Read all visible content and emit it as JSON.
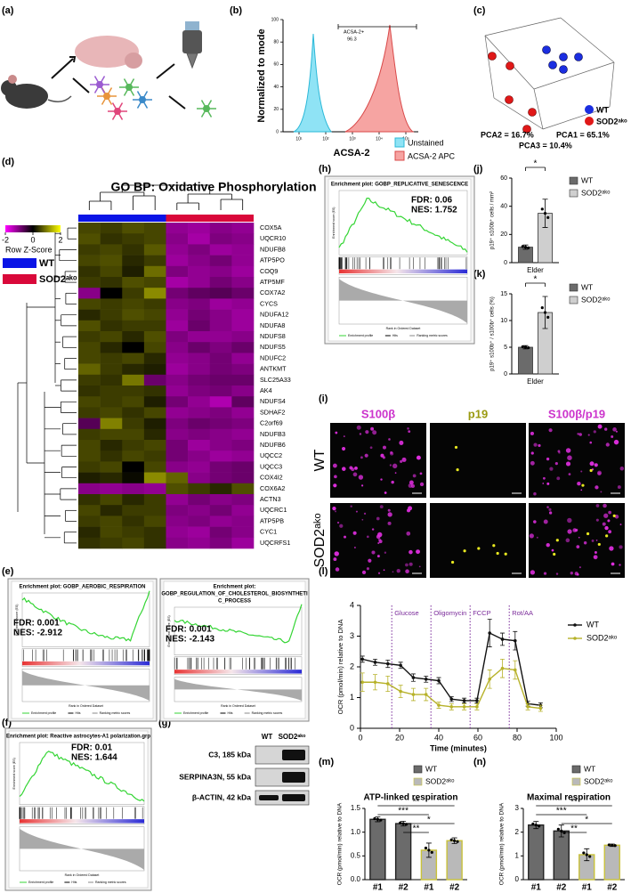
{
  "figure": {
    "panel_labels": [
      "(a)",
      "(b)",
      "(c)",
      "(d)",
      "(e)",
      "(f)",
      "(g)",
      "(h)",
      "(i)",
      "(j)",
      "(k)",
      "(l)",
      "(m)",
      "(n)"
    ],
    "b": {
      "y_label": "Normalized to mode",
      "x_label": "ACSA-2",
      "gate": "ACSA-2+",
      "gate_value": "96.3",
      "legend": [
        "Unstained",
        "ACSA-2 APC"
      ],
      "xticks": [
        "10¹",
        "10²",
        "10³",
        "10⁴",
        "10⁵"
      ],
      "yticks": [
        "0",
        "20",
        "40",
        "60",
        "80",
        "100"
      ]
    },
    "c": {
      "axes": [
        "PCA2 = 16.7%",
        "PCA1 = 65.1%",
        "PCA3 = 10.4%"
      ],
      "legend": [
        "WT",
        "SOD2ᵃᵏᵒ"
      ]
    },
    "gsea_common": {
      "es_label": "Enrichment score (ES)",
      "rank_label": "Rank in Ordered Dataset",
      "legend": [
        "Enrichment profile",
        "Hits",
        "Ranking metric scores"
      ]
    },
    "e": [
      {
        "title": [
          "Enrichment plot: GOBP_AEROBIC_RESPIRATION"
        ],
        "fdr": "FDR: 0.001",
        "nes": "NES: -2.912"
      },
      {
        "title": [
          "Enrichment plot:",
          "GOBP_REGULATION_OF_CHOLESTEROL_BIOSYNTHETI",
          "C_PROCESS"
        ],
        "fdr": "FDR: 0.001",
        "nes": "NES: -2.143"
      }
    ],
    "f": {
      "title": [
        "Enrichment plot: Reactive astrocytes-A1 polarization.grp"
      ],
      "fdr": "FDR: 0.01",
      "nes": "NES: 1.644"
    },
    "h": {
      "title": [
        "Enrichment plot: GOBP_REPLICATIVE_SENESCENCE"
      ],
      "fdr": "FDR: 0.06",
      "nes": "NES: 1.752"
    },
    "g": {
      "lanes": [
        "WT",
        "SOD2ᵃᵏᵒ"
      ],
      "bands": [
        "C3, 185 kDa",
        "SERPINA3N, 55 kDa",
        "β-ACTIN, 42 kDa"
      ]
    },
    "i": {
      "columns": [
        "S100β",
        "p19",
        "S100β/p19"
      ],
      "rows": [
        "WT",
        "SOD2ᵃᵏᵒ"
      ]
    }
  },
  "chart_data": [
    {
      "type": "heatmap",
      "title": "GO BP: Oxidative Phosphorylation",
      "colorbar": {
        "label": "Row Z-Score",
        "ticks": [
          -2,
          0,
          2
        ],
        "colors": [
          "#ff00ff",
          "#000000",
          "#ffff00"
        ]
      },
      "zlim": [
        -2,
        2
      ],
      "groups": [
        {
          "name": "WT",
          "color": "#0a14e6",
          "count": 4
        },
        {
          "name": "SOD2ᵃᵏᵒ",
          "color": "#d9083a",
          "count": 4
        }
      ],
      "rows": [
        "COX5A",
        "UQCR10",
        "NDUFB8",
        "ATP5PO",
        "COQ9",
        "ATP5MF",
        "COX7A2",
        "CYCS",
        "NDUFA12",
        "NDUFA8",
        "NDUFS8",
        "NDUFS5",
        "NDUFC2",
        "ANTKMT",
        "SLC25A33",
        "AK4",
        "NDUFS4",
        "SDHAF2",
        "C2orf69",
        "NDUFB3",
        "NDUFB6",
        "UQCC2",
        "UQCC3",
        "COX4I2",
        "COX6A2",
        "ACTN3",
        "UQCRC1",
        "ATP5PB",
        "CYC1",
        "UQCRFS1"
      ],
      "values": [
        [
          0.9,
          0.8,
          1.0,
          0.9,
          -0.9,
          -1.0,
          -0.8,
          -0.9
        ],
        [
          1.0,
          0.7,
          0.8,
          0.9,
          -0.8,
          -1.1,
          -0.7,
          -0.8
        ],
        [
          0.8,
          0.9,
          0.7,
          1.1,
          -0.9,
          -0.7,
          -1.0,
          -0.9
        ],
        [
          0.9,
          1.0,
          0.6,
          0.8,
          -1.0,
          -0.8,
          -0.6,
          -0.9
        ],
        [
          0.7,
          0.9,
          0.5,
          1.3,
          -0.7,
          -0.9,
          -0.8,
          -1.0
        ],
        [
          0.8,
          0.7,
          1.0,
          0.9,
          -1.1,
          -0.9,
          -0.6,
          -0.8
        ],
        [
          -0.8,
          0.2,
          0.8,
          1.6,
          -0.6,
          -0.4,
          -0.3,
          -0.5
        ],
        [
          0.9,
          0.8,
          0.9,
          0.8,
          -0.8,
          -0.7,
          -1.0,
          -0.9
        ],
        [
          0.6,
          0.8,
          1.0,
          0.9,
          -0.9,
          -0.6,
          -0.8,
          -1.0
        ],
        [
          1.0,
          0.7,
          0.8,
          0.8,
          -1.0,
          -0.5,
          -0.8,
          -1.0
        ],
        [
          0.8,
          0.9,
          0.6,
          1.0,
          -0.7,
          -0.9,
          -0.9,
          -0.8
        ],
        [
          0.9,
          0.6,
          0.1,
          0.9,
          -0.8,
          -0.5,
          -0.7,
          -0.5
        ],
        [
          0.9,
          0.8,
          0.9,
          0.6,
          -0.9,
          -0.8,
          -0.6,
          -0.9
        ],
        [
          1.2,
          0.8,
          0.6,
          0.5,
          -1.0,
          -0.8,
          -0.6,
          -0.7
        ],
        [
          0.8,
          0.7,
          1.4,
          -0.5,
          -0.8,
          -0.6,
          -0.5,
          -0.5
        ],
        [
          0.7,
          0.8,
          0.8,
          0.7,
          -0.9,
          -0.7,
          -0.6,
          -0.8
        ],
        [
          0.9,
          0.8,
          0.9,
          0.5,
          -0.6,
          -0.9,
          -1.2,
          -0.4
        ],
        [
          0.8,
          0.9,
          0.7,
          0.9,
          -0.9,
          -0.8,
          -0.7,
          -0.9
        ],
        [
          -0.3,
          1.5,
          0.8,
          0.5,
          -0.7,
          -0.5,
          -0.6,
          -0.7
        ],
        [
          0.8,
          0.9,
          0.9,
          0.6,
          -0.8,
          -0.7,
          -0.8,
          -0.9
        ],
        [
          0.9,
          0.6,
          0.8,
          0.9,
          -0.6,
          -1.0,
          -0.8,
          -0.7
        ],
        [
          0.9,
          0.7,
          0.9,
          0.8,
          -0.6,
          -0.8,
          -1.0,
          -0.9
        ],
        [
          0.8,
          0.9,
          0.2,
          0.9,
          -0.8,
          -0.9,
          -0.6,
          -0.5
        ],
        [
          0.5,
          0.6,
          0.3,
          1.6,
          1.2,
          -0.8,
          -0.6,
          -0.5
        ],
        [
          -0.8,
          -0.9,
          -0.8,
          -0.9,
          1.0,
          0.8,
          0.6,
          1.0
        ],
        [
          0.7,
          0.9,
          0.6,
          0.8,
          -0.9,
          -0.6,
          -0.8,
          -0.7
        ],
        [
          0.9,
          0.6,
          0.8,
          0.8,
          -0.7,
          -0.8,
          -0.6,
          -0.9
        ],
        [
          0.8,
          0.9,
          0.7,
          0.9,
          -0.8,
          -0.7,
          -0.9,
          -0.8
        ],
        [
          0.6,
          0.9,
          0.8,
          0.7,
          -0.9,
          -1.0,
          -0.6,
          -0.8
        ],
        [
          0.7,
          0.8,
          0.9,
          0.7,
          -0.8,
          -0.9,
          -0.7,
          -1.0
        ]
      ]
    },
    {
      "type": "bar",
      "y_label": "p19⁺ s100b⁺ cells / mm²",
      "categories": [
        "Elder"
      ],
      "series": [
        {
          "name": "WT",
          "color": "#6b6b6b",
          "edgecolor": "#333333",
          "values": [
            11
          ],
          "errors": [
            1.5
          ]
        },
        {
          "name": "SOD2ᵃᵏᵒ",
          "color": "#cfcfcf",
          "edgecolor": "#333333",
          "values": [
            35
          ],
          "errors": [
            10
          ]
        }
      ],
      "ylim": [
        0,
        60
      ],
      "yticks": [
        0,
        20,
        40,
        60
      ],
      "significance": [
        "*"
      ]
    },
    {
      "type": "bar",
      "y_label": "p19⁺ s100b⁺ / s100b⁺ cells (%)",
      "categories": [
        "Elder"
      ],
      "series": [
        {
          "name": "WT",
          "color": "#6b6b6b",
          "edgecolor": "#333333",
          "values": [
            5
          ],
          "errors": [
            0.3
          ]
        },
        {
          "name": "SOD2ᵃᵏᵒ",
          "color": "#cfcfcf",
          "edgecolor": "#333333",
          "values": [
            11.5
          ],
          "errors": [
            3
          ]
        }
      ],
      "ylim": [
        0,
        15
      ],
      "yticks": [
        0,
        5,
        10,
        15
      ],
      "significance": [
        "*"
      ]
    },
    {
      "type": "line",
      "x_label": "Time (minutes)",
      "y_label": "OCR (pmol/min) relative to DNA",
      "x": [
        1,
        7.5,
        14,
        20.5,
        27,
        33.5,
        40,
        46.5,
        53,
        59.5,
        66,
        72.5,
        79,
        85.5,
        92
      ],
      "series": [
        {
          "name": "WT",
          "color": "#111111",
          "values": [
            2.25,
            2.15,
            2.1,
            2.05,
            1.65,
            1.6,
            1.55,
            0.95,
            0.9,
            0.9,
            3.1,
            2.9,
            2.85,
            0.8,
            0.75
          ],
          "errors": [
            0.1,
            0.1,
            0.12,
            0.1,
            0.12,
            0.1,
            0.1,
            0.08,
            0.08,
            0.08,
            0.45,
            0.2,
            0.3,
            0.08,
            0.08
          ]
        },
        {
          "name": "SOD2ᵃᵏᵒ",
          "color": "#b7b22a",
          "values": [
            1.5,
            1.5,
            1.45,
            1.2,
            1.1,
            1.1,
            0.75,
            0.7,
            0.7,
            0.7,
            1.6,
            1.95,
            1.9,
            0.7,
            0.65
          ],
          "errors": [
            0.3,
            0.25,
            0.25,
            0.2,
            0.2,
            0.2,
            0.1,
            0.1,
            0.1,
            0.1,
            0.3,
            0.3,
            0.3,
            0.1,
            0.1
          ]
        }
      ],
      "annotations": [
        "Glucose",
        "Oligomycin",
        "FCCP",
        "Rot/AA"
      ],
      "xlim": [
        0,
        100
      ],
      "xticks": [
        0,
        20,
        40,
        60,
        80,
        100
      ],
      "ylim": [
        0,
        4
      ],
      "yticks": [
        0,
        1,
        2,
        3,
        4
      ]
    },
    {
      "type": "bar",
      "title": "ATP-linked respiration",
      "y_label": "OCR (pmol/min) relative to DNA",
      "categories": [
        "#1",
        "#2",
        "#1",
        "#2"
      ],
      "series": [
        {
          "name": "WT",
          "color": "#6b6b6b",
          "edgecolor": "#222222",
          "values": [
            1.27,
            1.18,
            null,
            null
          ],
          "errors": [
            0.05,
            0.05,
            null,
            null
          ]
        },
        {
          "name": "SOD2ᵃᵏᵒ",
          "color": "#b9b9b9",
          "edgecolor": "#c9c23a",
          "values": [
            null,
            null,
            0.62,
            0.82
          ],
          "errors": [
            null,
            null,
            0.15,
            0.06
          ]
        }
      ],
      "ylim": [
        0,
        1.5
      ],
      "yticks": [
        {
          "value": 0,
          "label": "0.0"
        },
        {
          "value": 0.5,
          "label": "0.5"
        },
        {
          "value": 1,
          "label": "1.0"
        },
        {
          "value": 1.5,
          "label": "1.5"
        }
      ],
      "significance": [
        "**",
        "***",
        "*",
        "**"
      ]
    },
    {
      "type": "bar",
      "title": "Maximal respiration",
      "y_label": "OCR (pmol/min) relative to DNA",
      "categories": [
        "#1",
        "#2",
        "#1",
        "#2"
      ],
      "series": [
        {
          "name": "WT",
          "color": "#6b6b6b",
          "edgecolor": "#222222",
          "values": [
            2.3,
            2.05,
            null,
            null
          ],
          "errors": [
            0.15,
            0.25,
            null,
            null
          ]
        },
        {
          "name": "SOD2ᵃᵏᵒ",
          "color": "#b9b9b9",
          "edgecolor": "#c9c23a",
          "values": [
            null,
            null,
            1.05,
            1.45
          ],
          "errors": [
            null,
            null,
            0.25,
            0.05
          ]
        }
      ],
      "ylim": [
        0,
        3
      ],
      "yticks": [
        0,
        1,
        2,
        3
      ],
      "significance": [
        "**",
        "***",
        "*",
        "**"
      ]
    }
  ]
}
